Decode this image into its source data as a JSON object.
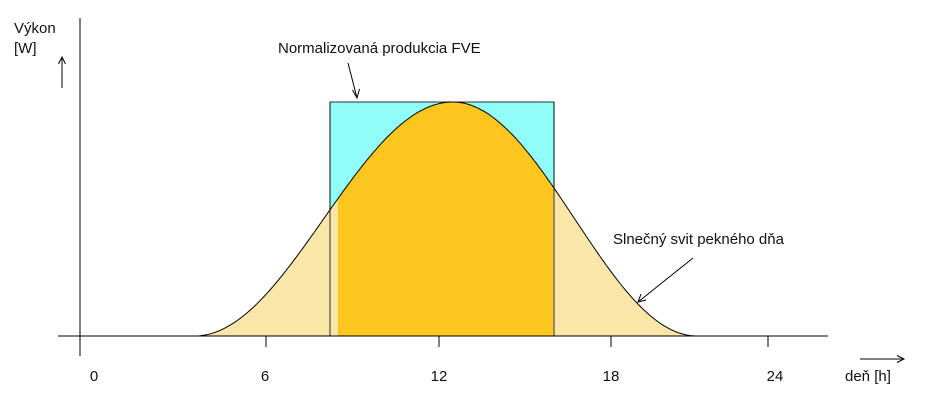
{
  "y_axis": {
    "label_line1": "Výkon",
    "label_line2": "[W]"
  },
  "x_axis": {
    "label": "deň [h]",
    "ticks": [
      "0",
      "6",
      "12",
      "18",
      "24"
    ]
  },
  "annotations": {
    "fve": "Normalizovaná produkcia FVE",
    "sun": "Slnečný svit pekného dňa"
  },
  "colors": {
    "sun_light": "#FAE6A8",
    "sun_dark": "#FDC61E",
    "fve_box": "#90FDF9",
    "axis": "#000000"
  },
  "chart_data": {
    "type": "area",
    "x_unit": "h",
    "x_ticks": [
      0,
      6,
      12,
      18,
      24
    ],
    "series": [
      {
        "name": "Slnečný svit pekného dňa",
        "shape": "bell",
        "x_range": [
          3.5,
          21
        ],
        "peak_x": 12.5
      },
      {
        "name": "Normalizovaná produkcia FVE",
        "shape": "rectangle",
        "x_range": [
          8.5,
          16
        ],
        "level": "peak"
      }
    ]
  }
}
